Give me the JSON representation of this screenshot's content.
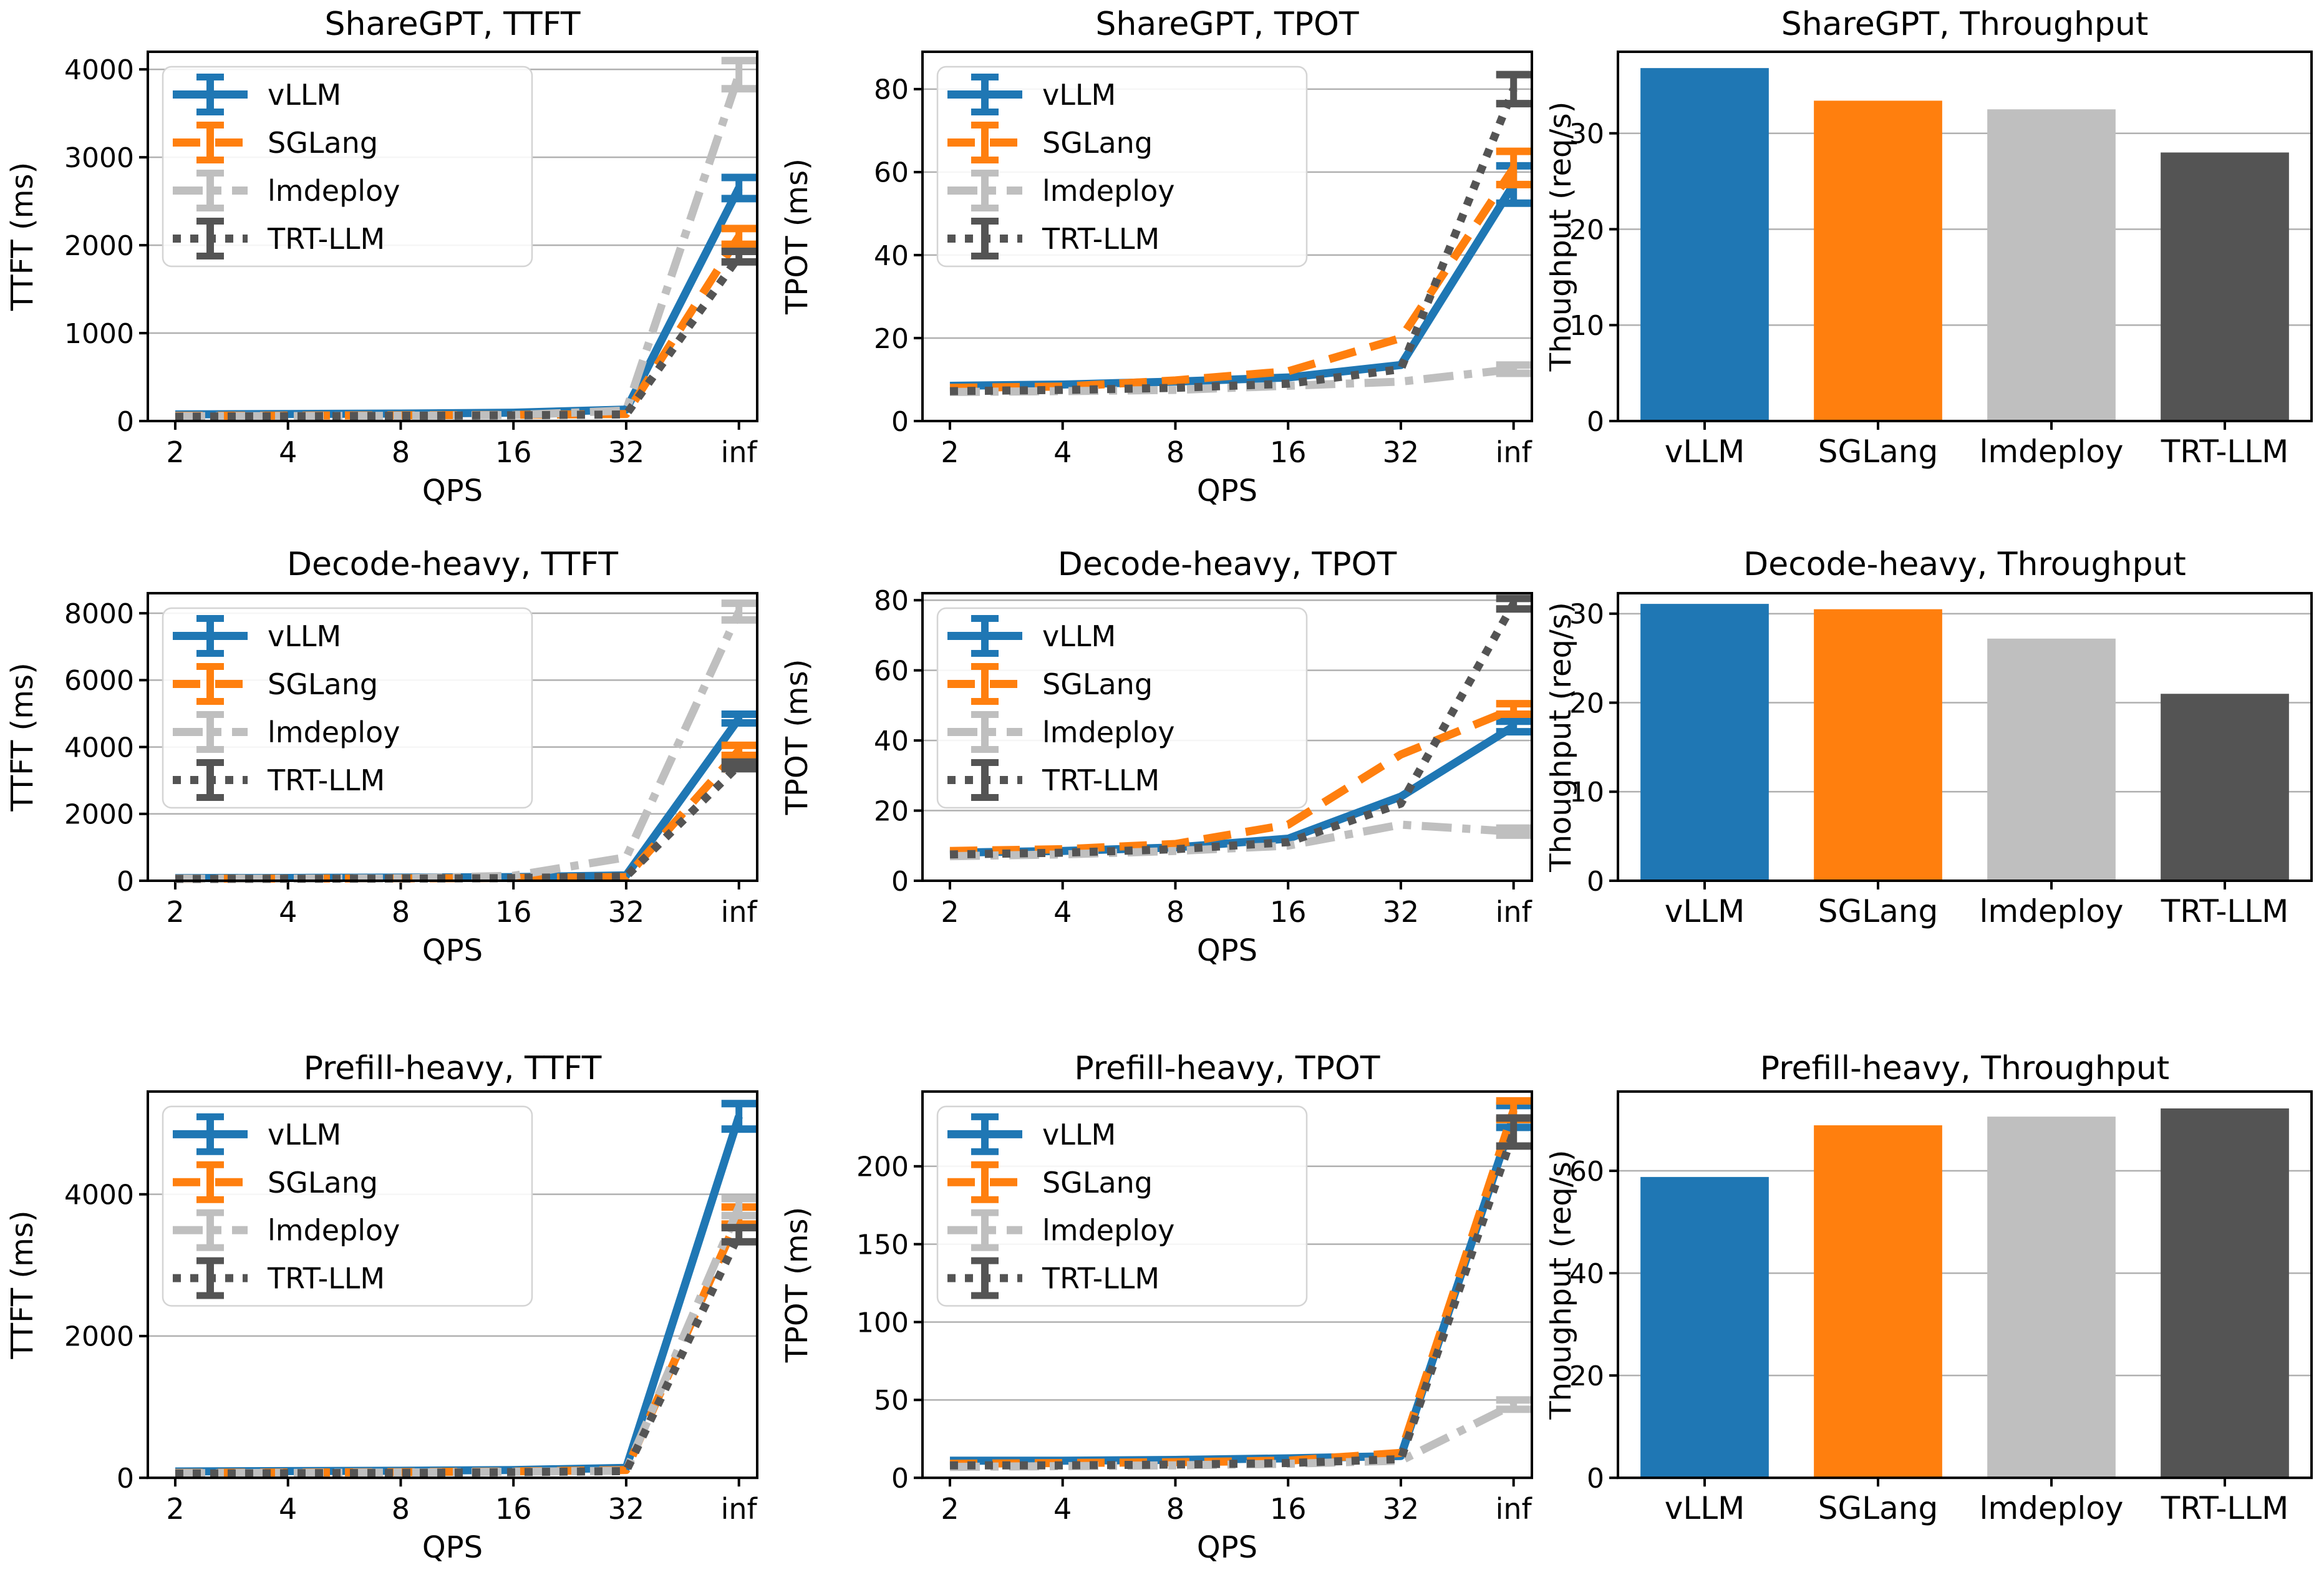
{
  "palette": {
    "vLLM": "#1f77b4",
    "SGLang": "#ff7f0e",
    "lmdeploy": "#bfbfbf",
    "TRT-LLM": "#545454",
    "grid": "#b0b0b0",
    "axis": "#000000",
    "legend_border": "#d4d4d4"
  },
  "legend": {
    "labels": [
      "vLLM",
      "SGLang",
      "lmdeploy",
      "TRT-LLM"
    ],
    "position": "upper left"
  },
  "chart_data": [
    {
      "type": "line",
      "title": "ShareGPT, TTFT",
      "xlabel": "QPS",
      "ylabel": "TTFT (ms)",
      "x_ticklabels": [
        "2",
        "4",
        "8",
        "16",
        "32",
        "inf"
      ],
      "yticks": [
        0,
        1000,
        2000,
        3000,
        4000
      ],
      "ylim": [
        0,
        4200
      ],
      "grid": true,
      "legend": true,
      "series": [
        {
          "name": "vLLM",
          "color": "#1f77b4",
          "dash": "solid",
          "values": [
            75,
            80,
            85,
            95,
            130,
            2650
          ],
          "errors": [
            0,
            0,
            0,
            0,
            0,
            120
          ]
        },
        {
          "name": "SGLang",
          "color": "#ff7f0e",
          "dash": "dashed",
          "values": [
            60,
            62,
            65,
            70,
            80,
            2100
          ],
          "errors": [
            0,
            0,
            0,
            0,
            0,
            90
          ]
        },
        {
          "name": "lmdeploy",
          "color": "#bfbfbf",
          "dash": "dashdot",
          "values": [
            55,
            57,
            60,
            68,
            120,
            3940
          ],
          "errors": [
            0,
            0,
            0,
            0,
            0,
            160
          ]
        },
        {
          "name": "TRT-LLM",
          "color": "#545454",
          "dash": "dotted",
          "values": [
            50,
            55,
            60,
            65,
            75,
            1870
          ],
          "errors": [
            0,
            0,
            0,
            0,
            0,
            60
          ]
        }
      ]
    },
    {
      "type": "line",
      "title": "ShareGPT, TPOT",
      "xlabel": "QPS",
      "ylabel": "TPOT (ms)",
      "x_ticklabels": [
        "2",
        "4",
        "8",
        "16",
        "32",
        "inf"
      ],
      "yticks": [
        0,
        20,
        40,
        60,
        80
      ],
      "ylim": [
        0,
        89
      ],
      "grid": true,
      "legend": true,
      "series": [
        {
          "name": "vLLM",
          "color": "#1f77b4",
          "dash": "solid",
          "values": [
            8.5,
            8.8,
            9.5,
            10.5,
            13.5,
            57
          ],
          "errors": [
            0,
            0,
            0,
            0,
            0,
            4.5
          ]
        },
        {
          "name": "SGLang",
          "color": "#ff7f0e",
          "dash": "dashed",
          "values": [
            8.0,
            8.3,
            9.8,
            12,
            20,
            61
          ],
          "errors": [
            0,
            0,
            0,
            0,
            0,
            4
          ]
        },
        {
          "name": "lmdeploy",
          "color": "#bfbfbf",
          "dash": "dashdot",
          "values": [
            7.0,
            7.2,
            7.5,
            8.5,
            9.5,
            12.5
          ],
          "errors": [
            0,
            0,
            0,
            0,
            0,
            1
          ]
        },
        {
          "name": "TRT-LLM",
          "color": "#545454",
          "dash": "dotted",
          "values": [
            7.2,
            7.5,
            8.0,
            9.0,
            12.5,
            80
          ],
          "errors": [
            0,
            0,
            0,
            0,
            0,
            3.5
          ]
        }
      ]
    },
    {
      "type": "bar",
      "title": "ShareGPT, Throughput",
      "ylabel": "Thoughput (req/s)",
      "categories": [
        "vLLM",
        "SGLang",
        "lmdeploy",
        "TRT-LLM"
      ],
      "values": [
        36.8,
        33.4,
        32.5,
        28.0
      ],
      "colors": [
        "#1f77b4",
        "#ff7f0e",
        "#bfbfbf",
        "#545454"
      ],
      "yticks": [
        0,
        10,
        20,
        30
      ],
      "ylim": [
        0,
        38.5
      ],
      "grid": true,
      "legend": false
    },
    {
      "type": "line",
      "title": "Decode-heavy, TTFT",
      "xlabel": "QPS",
      "ylabel": "TTFT (ms)",
      "x_ticklabels": [
        "2",
        "4",
        "8",
        "16",
        "32",
        "inf"
      ],
      "yticks": [
        0,
        2000,
        4000,
        6000,
        8000
      ],
      "ylim": [
        0,
        8600
      ],
      "grid": true,
      "legend": true,
      "series": [
        {
          "name": "vLLM",
          "color": "#1f77b4",
          "dash": "solid",
          "values": [
            80,
            85,
            95,
            110,
            160,
            4850
          ],
          "errors": [
            0,
            0,
            0,
            0,
            0,
            130
          ]
        },
        {
          "name": "SGLang",
          "color": "#ff7f0e",
          "dash": "dashed",
          "values": [
            60,
            65,
            70,
            85,
            110,
            3900
          ],
          "errors": [
            0,
            0,
            0,
            0,
            0,
            150
          ]
        },
        {
          "name": "lmdeploy",
          "color": "#bfbfbf",
          "dash": "dashdot",
          "values": [
            60,
            62,
            70,
            150,
            700,
            8050
          ],
          "errors": [
            0,
            0,
            0,
            0,
            0,
            250
          ]
        },
        {
          "name": "TRT-LLM",
          "color": "#545454",
          "dash": "dotted",
          "values": [
            55,
            60,
            65,
            80,
            130,
            3450
          ],
          "errors": [
            0,
            0,
            0,
            0,
            0,
            100
          ]
        }
      ]
    },
    {
      "type": "line",
      "title": "Decode-heavy, TPOT",
      "xlabel": "QPS",
      "ylabel": "TPOT (ms)",
      "x_ticklabels": [
        "2",
        "4",
        "8",
        "16",
        "32",
        "inf"
      ],
      "yticks": [
        0,
        20,
        40,
        60,
        80
      ],
      "ylim": [
        0,
        82
      ],
      "grid": true,
      "legend": true,
      "series": [
        {
          "name": "vLLM",
          "color": "#1f77b4",
          "dash": "solid",
          "values": [
            8,
            8.5,
            9.5,
            12,
            24,
            44
          ],
          "errors": [
            0,
            0,
            0,
            0,
            0,
            1.5
          ]
        },
        {
          "name": "SGLang",
          "color": "#ff7f0e",
          "dash": "dashed",
          "values": [
            8.5,
            9,
            10.5,
            16,
            36,
            49
          ],
          "errors": [
            0,
            0,
            0,
            0,
            0,
            1.5
          ]
        },
        {
          "name": "lmdeploy",
          "color": "#bfbfbf",
          "dash": "dashdot",
          "values": [
            7,
            7.5,
            8.5,
            10,
            16,
            14
          ],
          "errors": [
            0,
            0,
            0,
            0,
            0,
            1
          ]
        },
        {
          "name": "TRT-LLM",
          "color": "#545454",
          "dash": "dotted",
          "values": [
            7.5,
            8,
            9,
            11,
            22,
            79
          ],
          "errors": [
            0,
            0,
            0,
            0,
            0,
            1.5
          ]
        }
      ]
    },
    {
      "type": "bar",
      "title": "Decode-heavy, Throughput",
      "ylabel": "Thoughput (req/s)",
      "categories": [
        "vLLM",
        "SGLang",
        "lmdeploy",
        "TRT-LLM"
      ],
      "values": [
        31.1,
        30.5,
        27.2,
        21.0
      ],
      "colors": [
        "#1f77b4",
        "#ff7f0e",
        "#bfbfbf",
        "#545454"
      ],
      "yticks": [
        0,
        10,
        20,
        30
      ],
      "ylim": [
        0,
        32.3
      ],
      "grid": true,
      "legend": false
    },
    {
      "type": "line",
      "title": "Prefill-heavy, TTFT",
      "xlabel": "QPS",
      "ylabel": "TTFT (ms)",
      "x_ticklabels": [
        "2",
        "4",
        "8",
        "16",
        "32",
        "inf"
      ],
      "yticks": [
        0,
        2000,
        4000
      ],
      "ylim": [
        0,
        5450
      ],
      "grid": true,
      "legend": true,
      "series": [
        {
          "name": "vLLM",
          "color": "#1f77b4",
          "dash": "solid",
          "values": [
            90,
            95,
            100,
            110,
            140,
            5100
          ],
          "errors": [
            0,
            0,
            0,
            0,
            0,
            180
          ]
        },
        {
          "name": "SGLang",
          "color": "#ff7f0e",
          "dash": "dashed",
          "values": [
            70,
            75,
            80,
            90,
            110,
            3700
          ],
          "errors": [
            0,
            0,
            0,
            0,
            0,
            120
          ]
        },
        {
          "name": "lmdeploy",
          "color": "#bfbfbf",
          "dash": "dashdot",
          "values": [
            65,
            70,
            75,
            85,
            100,
            3820
          ],
          "errors": [
            0,
            0,
            0,
            0,
            0,
            120
          ]
        },
        {
          "name": "TRT-LLM",
          "color": "#545454",
          "dash": "dotted",
          "values": [
            60,
            65,
            70,
            80,
            95,
            3430
          ],
          "errors": [
            0,
            0,
            0,
            0,
            0,
            100
          ]
        }
      ]
    },
    {
      "type": "line",
      "title": "Prefill-heavy, TPOT",
      "xlabel": "QPS",
      "ylabel": "TPOT (ms)",
      "x_ticklabels": [
        "2",
        "4",
        "8",
        "16",
        "32",
        "inf"
      ],
      "yticks": [
        0,
        50,
        100,
        150,
        200
      ],
      "ylim": [
        0,
        248
      ],
      "grid": true,
      "legend": true,
      "series": [
        {
          "name": "vLLM",
          "color": "#1f77b4",
          "dash": "solid",
          "values": [
            11,
            11,
            11.5,
            12.5,
            14,
            232
          ],
          "errors": [
            0,
            0,
            0,
            0,
            0,
            7
          ]
        },
        {
          "name": "SGLang",
          "color": "#ff7f0e",
          "dash": "dashed",
          "values": [
            9,
            9.5,
            10,
            11,
            16,
            236
          ],
          "errors": [
            0,
            0,
            0,
            0,
            0,
            6
          ]
        },
        {
          "name": "lmdeploy",
          "color": "#bfbfbf",
          "dash": "dashdot",
          "values": [
            7,
            7.5,
            8,
            9,
            11,
            47
          ],
          "errors": [
            0,
            0,
            0,
            0,
            0,
            3
          ]
        },
        {
          "name": "TRT-LLM",
          "color": "#545454",
          "dash": "dotted",
          "values": [
            8,
            8,
            8.5,
            9.5,
            12,
            222
          ],
          "errors": [
            0,
            0,
            0,
            0,
            0,
            9
          ]
        }
      ]
    },
    {
      "type": "bar",
      "title": "Prefill-heavy, Throughput",
      "ylabel": "Thoughput (req/s)",
      "categories": [
        "vLLM",
        "SGLang",
        "lmdeploy",
        "TRT-LLM"
      ],
      "values": [
        58.8,
        68.9,
        70.6,
        72.2
      ],
      "colors": [
        "#1f77b4",
        "#ff7f0e",
        "#bfbfbf",
        "#545454"
      ],
      "yticks": [
        0,
        20,
        40,
        60
      ],
      "ylim": [
        0,
        75.5
      ],
      "grid": true,
      "legend": false
    }
  ]
}
